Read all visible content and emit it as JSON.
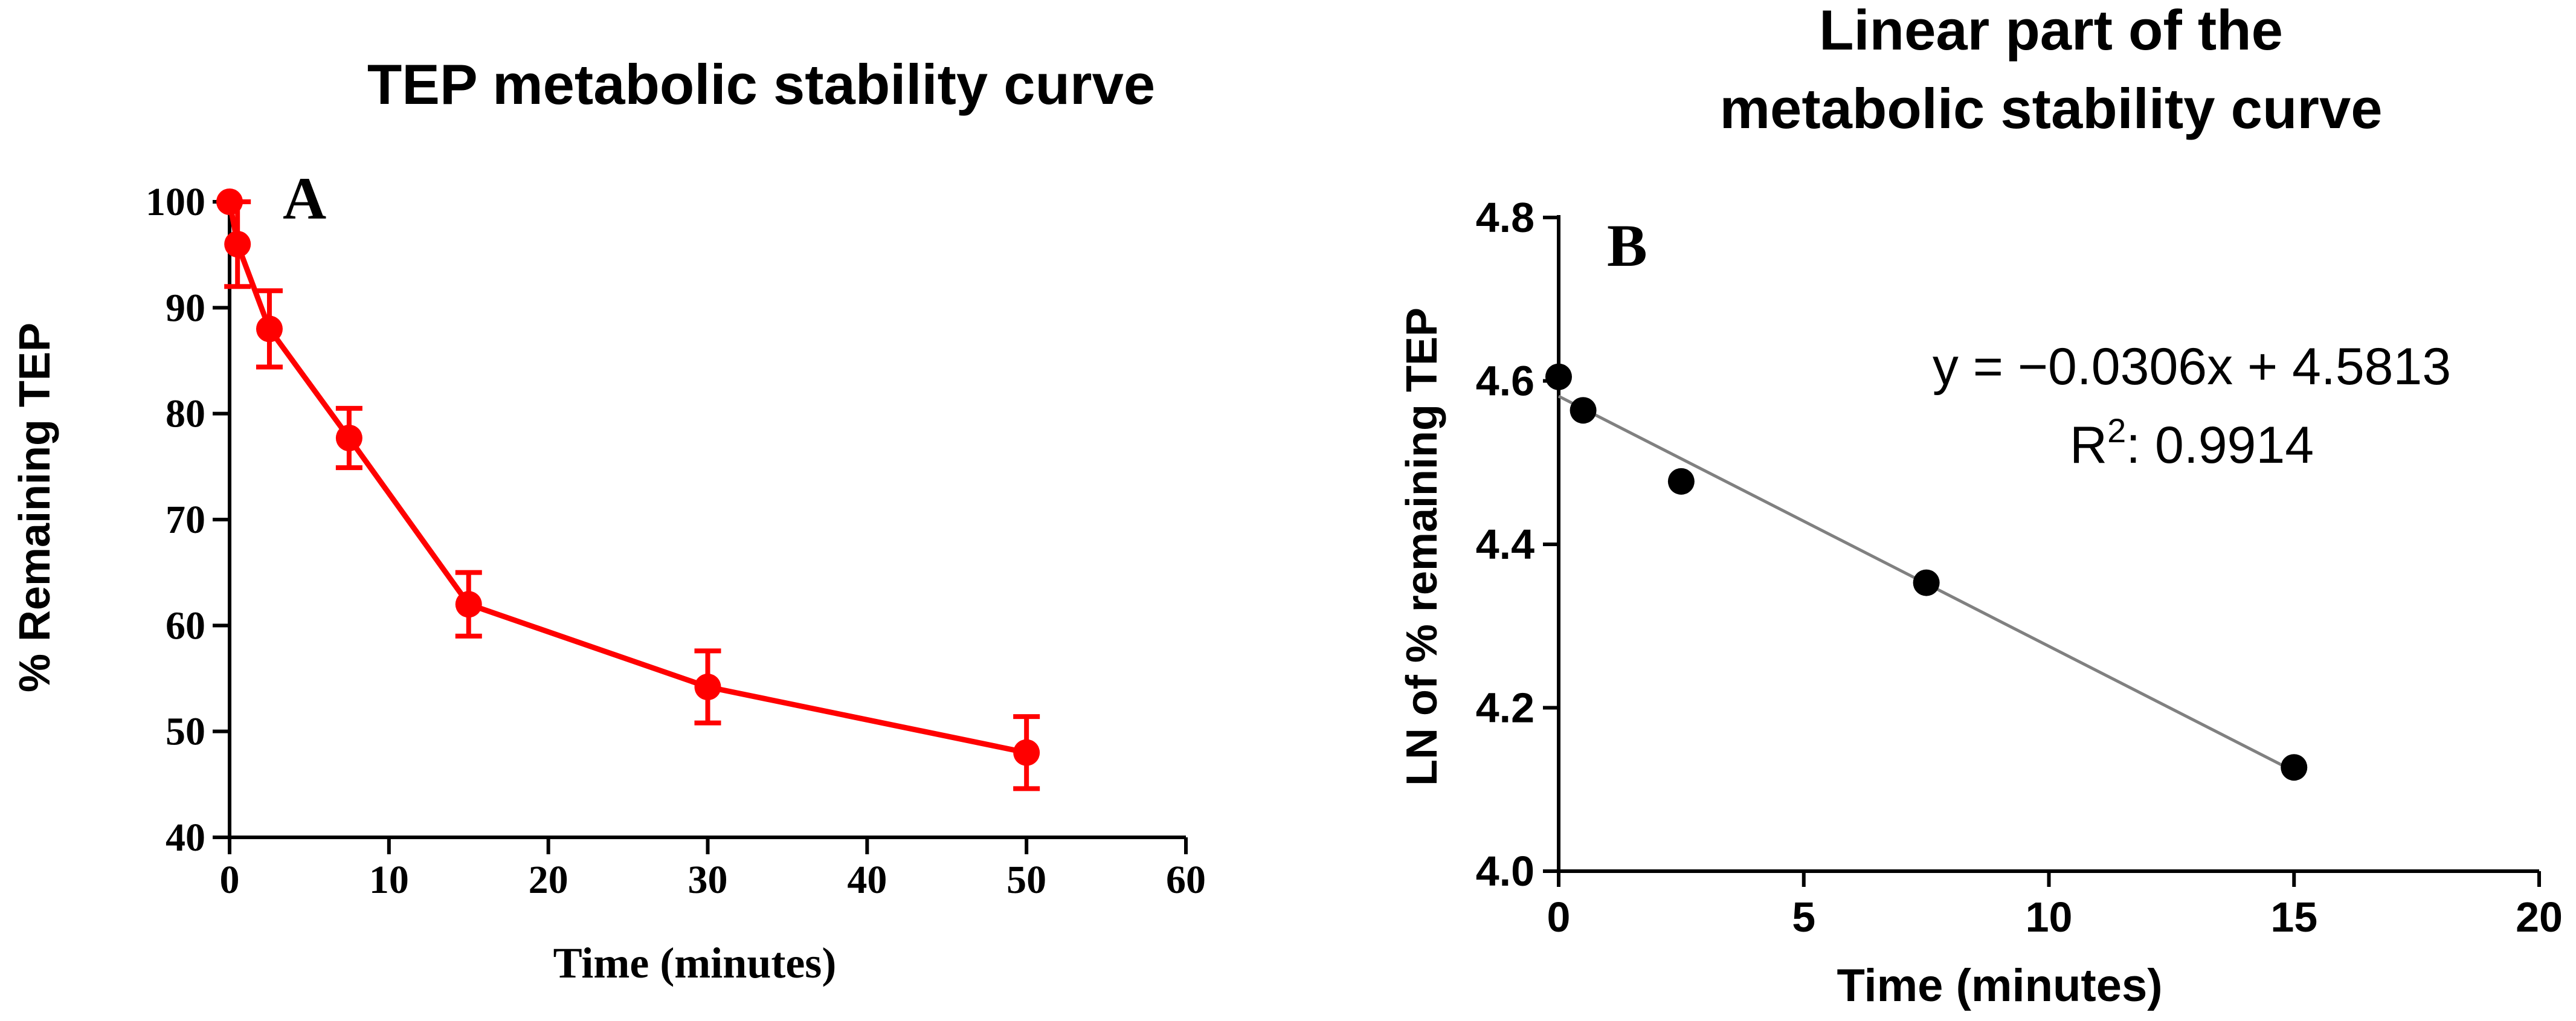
{
  "chart_data": [
    {
      "type": "line",
      "panel_label": "A",
      "title": "TEP metabolic stability curve",
      "xlabel": "Time (minutes)",
      "ylabel": "% Remaining TEP",
      "xlim": [
        0,
        60
      ],
      "ylim": [
        40,
        100
      ],
      "x_ticks": [
        0,
        10,
        20,
        30,
        40,
        50,
        60
      ],
      "y_ticks": [
        40,
        50,
        60,
        70,
        80,
        90,
        100
      ],
      "grid": false,
      "color": "#ff0000",
      "series": [
        {
          "x": [
            0,
            0.5,
            2.5,
            7.5,
            15,
            30,
            50
          ],
          "y": [
            100,
            96,
            88,
            77.7,
            62,
            54.2,
            48
          ],
          "error": [
            0,
            4,
            3.6,
            2.8,
            3,
            3.4,
            3.4
          ]
        }
      ]
    },
    {
      "type": "scatter",
      "panel_label": "B",
      "title": "Linear part of the metabolic stability curve",
      "xlabel": "Time (minutes)",
      "ylabel": "LN of % remaining TEP",
      "xlim": [
        0,
        20
      ],
      "ylim": [
        4.0,
        4.8
      ],
      "x_ticks": [
        0,
        5,
        10,
        15,
        20
      ],
      "y_ticks": [
        "4.0",
        "4.2",
        "4.4",
        "4.6",
        "4.8"
      ],
      "grid": false,
      "point_color": "#000000",
      "trendline_color": "#808080",
      "series": [
        {
          "x": [
            0,
            0.5,
            2.5,
            7.5,
            15
          ],
          "y": [
            4.605,
            4.564,
            4.477,
            4.353,
            4.127
          ]
        }
      ],
      "trendline": {
        "slope": -0.0306,
        "intercept": 4.5813,
        "x_range": [
          0,
          15
        ]
      },
      "equation": "y = −0.0306x + 4.5813",
      "r2_label": "R",
      "r2_sup": "2",
      "r2_value": ": 0.9914"
    }
  ]
}
